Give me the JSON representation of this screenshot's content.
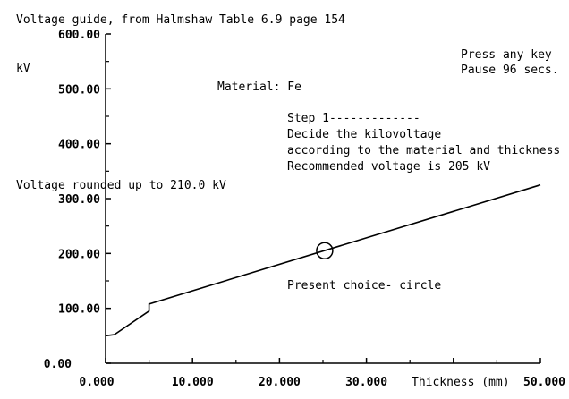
{
  "header": {
    "title": "Voltage guide, from Halmshaw Table 6.9 page 154"
  },
  "status": {
    "press_key": "Press any key",
    "pause": "Pause  96 secs."
  },
  "info": {
    "material": "Material: Fe",
    "step": "Step 1-------------",
    "line1": "Decide the kilovoltage",
    "line2": "according to the material and thickness",
    "recommended": "Recommended voltage is  205  kV",
    "rounded": "Voltage rounded up to  210.0 kV",
    "present_choice": "Present choice- circle"
  },
  "colors": {
    "ink": "#000000",
    "background": "#ffffff"
  },
  "chart_data": {
    "type": "line",
    "ylabel": "kV",
    "xlabel": "Thickness (mm)",
    "xlim": [
      0,
      50
    ],
    "ylim": [
      0,
      600
    ],
    "x_ticks": [
      "0.000",
      "10.000",
      "20.000",
      "30.000",
      "",
      "50.000"
    ],
    "y_ticks": [
      "0.00",
      "100.00",
      "200.00",
      "300.00",
      "400.00",
      "500.00",
      "600.00"
    ],
    "series": [
      {
        "x": [
          0,
          1,
          5,
          5,
          50
        ],
        "y": [
          50,
          52,
          95,
          108,
          325
        ]
      }
    ],
    "marker": {
      "x": 25.2,
      "y": 205,
      "shape": "circle"
    }
  }
}
